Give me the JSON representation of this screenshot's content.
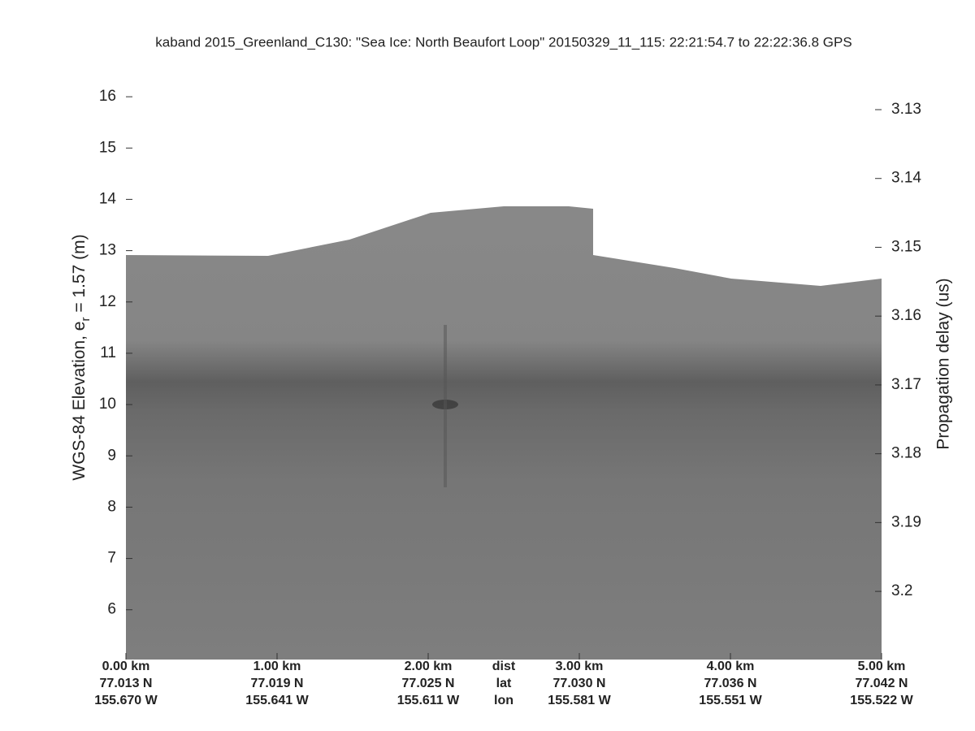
{
  "chart_data": {
    "type": "echogram",
    "title": "kaband 2015_Greenland_C130: \"Sea Ice: North Beaufort Loop\"  20150329_11_115: 22:21:54.7 to 22:22:36.8 GPS",
    "ylabel": {
      "text": "WGS-84 Elevation, e",
      "subscript": "r",
      "suffix": " = 1.57 (m)"
    },
    "y2label": "Propagation delay (us)",
    "ylim": [
      5.03,
      16.54
    ],
    "yticks": [
      6,
      7,
      8,
      9,
      10,
      11,
      12,
      13,
      14,
      15,
      16
    ],
    "y2lim": [
      3.2099,
      3.1241
    ],
    "y2ticks": [
      3.13,
      3.14,
      3.15,
      3.16,
      3.17,
      3.18,
      3.19,
      3.2
    ],
    "xlim": [
      0,
      5
    ],
    "xticks": [
      {
        "value": 0,
        "label": "0.00 km"
      },
      {
        "value": 1,
        "label": "1.00 km"
      },
      {
        "value": 2,
        "label": "2.00 km"
      },
      {
        "value": 3,
        "label": "3.00 km"
      },
      {
        "value": 4,
        "label": "4.00 km"
      },
      {
        "value": 5,
        "label": "5.00 km"
      }
    ],
    "lat_labels": [
      "77.013 N",
      "77.019 N",
      "77.025 N",
      "77.030 N",
      "77.036 N",
      "77.042 N"
    ],
    "lon_labels": [
      "155.670 W",
      "155.641 W",
      "155.611 W",
      "155.581 W",
      "155.551 W",
      "155.522 W"
    ],
    "row_labels": [
      "dist",
      "lat",
      "lon"
    ]
  }
}
